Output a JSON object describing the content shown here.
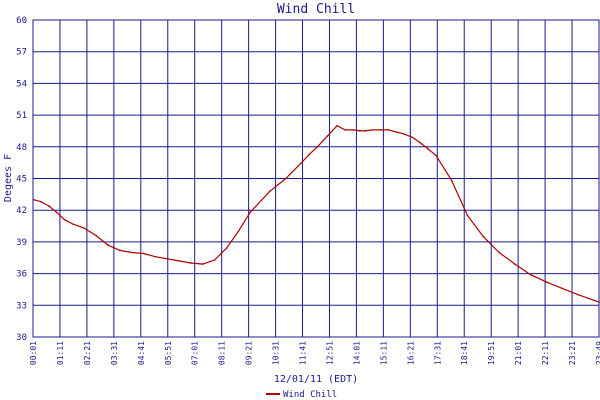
{
  "chart_data": {
    "type": "line",
    "title": "Wind Chill",
    "xlabel": "12/01/11 (EDT)",
    "ylabel": "Degees F",
    "ylim": [
      30,
      60
    ],
    "yticks": [
      30,
      33,
      36,
      39,
      42,
      45,
      48,
      51,
      54,
      57,
      60
    ],
    "xlim": [
      0,
      1433
    ],
    "xtick_labels": [
      "00:01",
      "01:11",
      "02:21",
      "03:31",
      "04:41",
      "05:51",
      "07:01",
      "08:11",
      "09:21",
      "10:31",
      "11:41",
      "12:51",
      "14:01",
      "15:11",
      "16:21",
      "17:31",
      "18:41",
      "19:51",
      "21:01",
      "22:11",
      "23:21",
      "23:49"
    ],
    "grid": true,
    "legend_position": "bottom-left",
    "colors": {
      "series": "#b00000",
      "grid": "#1a1a8c",
      "text": "#1a1a8c"
    },
    "series": [
      {
        "name": "Wind Chill",
        "x_minutes_from_midnight": [
          1,
          20,
          40,
          60,
          80,
          100,
          130,
          160,
          190,
          220,
          250,
          280,
          310,
          340,
          370,
          400,
          430,
          460,
          490,
          520,
          550,
          600,
          640,
          680,
          700,
          720,
          745,
          770,
          790,
          810,
          828,
          840,
          860,
          880,
          900,
          920,
          940,
          960,
          980,
          1000,
          1020,
          1060,
          1100,
          1140,
          1180,
          1220,
          1260,
          1300,
          1340,
          1380,
          1433
        ],
        "values": [
          43.0,
          42.8,
          42.4,
          41.8,
          41.1,
          40.7,
          40.3,
          39.6,
          38.7,
          38.2,
          38.0,
          37.9,
          37.6,
          37.4,
          37.2,
          37.0,
          36.9,
          37.3,
          38.4,
          40.0,
          41.8,
          43.8,
          45.0,
          46.5,
          47.3,
          48.0,
          49.0,
          50.0,
          49.6,
          49.6,
          49.5,
          49.5,
          49.6,
          49.6,
          49.6,
          49.4,
          49.2,
          48.9,
          48.4,
          47.8,
          47.2,
          44.8,
          41.5,
          39.5,
          38.0,
          36.9,
          35.9,
          35.2,
          34.6,
          34.0,
          33.3
        ]
      }
    ]
  }
}
